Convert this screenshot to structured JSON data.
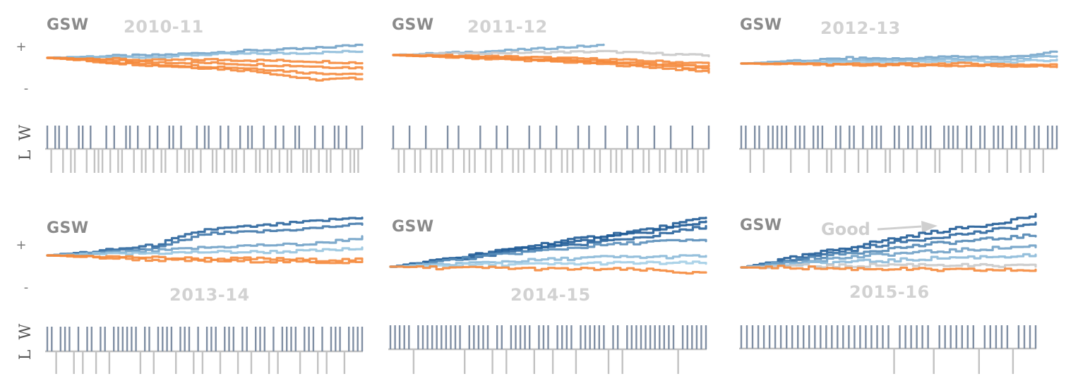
{
  "chart_data": {
    "type": "line",
    "labels": {
      "plus": "+",
      "minus": "-",
      "win": "W",
      "loss": "L",
      "annotation": "Good"
    },
    "colors": {
      "negative": "#f58a3c",
      "neutral": "#c9c9c9",
      "positive_light": "#a9d3ea",
      "positive_dark": "#1f5b96",
      "win_tick": "#7f8ea3",
      "loss_tick": "#c2c2c2"
    },
    "panels": [
      {
        "team": "GSW",
        "season": "2010-11",
        "series": [
          {
            "values": [
              0,
              0.2,
              0.3,
              0.6,
              0.9,
              1.1,
              1.6
            ]
          },
          {
            "values": [
              0,
              0.1,
              0.1,
              0.4,
              0.5,
              0.6,
              0.8
            ]
          },
          {
            "values": [
              0,
              -0.1,
              -0.3,
              -0.2,
              -0.3,
              -0.4,
              -0.6
            ]
          },
          {
            "values": [
              0,
              -0.3,
              -0.5,
              -0.6,
              -0.8,
              -1.0,
              -1.2
            ]
          },
          {
            "values": [
              0,
              -0.4,
              -0.8,
              -1.0,
              -1.3,
              -1.8,
              -1.9
            ]
          },
          {
            "values": [
              0,
              -0.5,
              -0.9,
              -1.2,
              -1.6,
              -2.6,
              -2.4
            ]
          }
        ],
        "results": "WLWWLWLLWWLWLLLWLWLLWWLWLLWLWLLWWLWLLLWLWWLLWLWLLWLWWLLWLLWLWLLWWLLLWLWLLWWLWLLLW"
      },
      {
        "team": "GSW",
        "season": "2011-12",
        "series": [
          {
            "values": [
              0,
              0.3,
              0.6,
              1.0,
              1.4,
              null,
              null
            ]
          },
          {
            "values": [
              0,
              0.2,
              0.3,
              0.4,
              0.5,
              0.2,
              -0.1
            ]
          },
          {
            "values": [
              0,
              -0.1,
              -0.2,
              -0.4,
              -0.6,
              -0.9,
              -1.2
            ]
          },
          {
            "values": [
              0,
              -0.2,
              -0.4,
              -0.6,
              -0.9,
              -1.3,
              -1.6
            ]
          },
          {
            "values": [
              0,
              -0.2,
              -0.5,
              -0.8,
              -1.1,
              -1.5,
              -2.0
            ]
          },
          {
            "values": [
              0,
              -0.3,
              -0.6,
              -0.9,
              -1.3,
              -1.8,
              -2.4
            ]
          }
        ],
        "results": "WLLWLLWLLLWLWLLLWLLWLWLLLWLWLLWLLLWLWLLWLLLWLWLLWLLWLLLWLLW"
      },
      {
        "team": "GSW",
        "season": "2012-13",
        "series": [
          {
            "values": [
              0,
              0.3,
              0.7,
              0.6,
              0.9,
              0.8,
              1.5
            ]
          },
          {
            "values": [
              0,
              0.2,
              0.4,
              0.4,
              0.6,
              0.5,
              1.0
            ]
          },
          {
            "values": [
              0,
              0.1,
              0.2,
              0.1,
              0.3,
              0.2,
              0.5
            ]
          },
          {
            "values": [
              0,
              0,
              -0.1,
              -0.1,
              0,
              -0.1,
              -0.2
            ]
          },
          {
            "values": [
              0,
              -0.1,
              -0.2,
              -0.2,
              -0.3,
              -0.3,
              -0.4
            ]
          }
        ],
        "results": "WWLWWLWWWWWLWWWLWWWLLWWLWWLWLWWWLLWWLWWLWWWLLWWWWLWWLWWLWWWLWWLWLWWLWWW"
      },
      {
        "team": "GSW",
        "season": "2013-14",
        "series": [
          {
            "values": [
              0,
              0.4,
              0.9,
              2.3,
              2.6,
              3.0,
              3.4
            ]
          },
          {
            "values": [
              0,
              0.3,
              0.6,
              1.9,
              2.1,
              2.4,
              2.8
            ]
          },
          {
            "values": [
              0,
              0.2,
              0.4,
              0.7,
              0.9,
              1.0,
              1.6
            ]
          },
          {
            "values": [
              0,
              0.1,
              0.2,
              0.3,
              0.3,
              0.4,
              0.6
            ]
          },
          {
            "values": [
              0,
              -0.1,
              -0.2,
              -0.3,
              -0.3,
              -0.4,
              -0.4
            ]
          },
          {
            "values": [
              0,
              -0.2,
              -0.4,
              -0.5,
              -0.5,
              -0.6,
              -0.6
            ]
          }
        ],
        "results": "WWLWWWLWLWWLWWLWWWWWWLWWLWWWWLWWWLWLWWWLWWWLWWLWWWLWLWWWWLWWWLWLWWWLWWWW"
      },
      {
        "team": "GSW",
        "season": "2014-15",
        "series": [
          {
            "values": [
              0,
              0.6,
              1.3,
              2.0,
              2.6,
              3.2,
              4.1
            ]
          },
          {
            "values": [
              0,
              0.6,
              1.2,
              1.8,
              2.4,
              3.0,
              3.8
            ]
          },
          {
            "values": [
              0,
              0.5,
              1.1,
              1.6,
              2.1,
              2.6,
              3.4
            ]
          },
          {
            "values": [
              0,
              0.5,
              1.0,
              1.4,
              1.8,
              2.1,
              2.2
            ]
          },
          {
            "values": [
              0,
              0.2,
              0.4,
              0.6,
              0.8,
              0.8,
              0.9
            ]
          },
          {
            "values": [
              0,
              0.1,
              0.2,
              0.2,
              0.3,
              0.3,
              0.3
            ]
          },
          {
            "values": [
              0,
              -0.1,
              -0.1,
              -0.2,
              -0.2,
              -0.3,
              -0.6
            ]
          }
        ],
        "results": "WWWWWLWWWWWWWWWWLWWWWWLWWLWWWWWLWWWLWWWWLWWWWWWLWWLWWWWWWWWWWWLWWWWWW"
      },
      {
        "team": "GSW",
        "season": "2015-16",
        "series": [
          {
            "values": [
              0,
              0.7,
              1.4,
              2.1,
              2.7,
              3.2,
              3.9
            ]
          },
          {
            "values": [
              0,
              0.6,
              1.2,
              1.8,
              2.3,
              2.7,
              3.3
            ]
          },
          {
            "values": [
              0,
              0.5,
              1.0,
              1.4,
              1.8,
              2.1,
              2.4
            ]
          },
          {
            "values": [
              0,
              0.4,
              0.7,
              1.0,
              1.2,
              1.4,
              1.6
            ]
          },
          {
            "values": [
              0,
              0.2,
              0.4,
              0.5,
              0.7,
              0.8,
              0.9
            ]
          },
          {
            "values": [
              0,
              0.1,
              0.1,
              0.2,
              0.2,
              0.1,
              0.1
            ]
          },
          {
            "values": [
              0,
              0,
              -0.1,
              -0.1,
              -0.2,
              -0.2,
              -0.2
            ]
          }
        ],
        "results": "WWWWWWWWWWWWWWWWWWWWWWWWWWWLWWWWWWLWWWWWWWLWWWWWLWWWW"
      }
    ]
  }
}
